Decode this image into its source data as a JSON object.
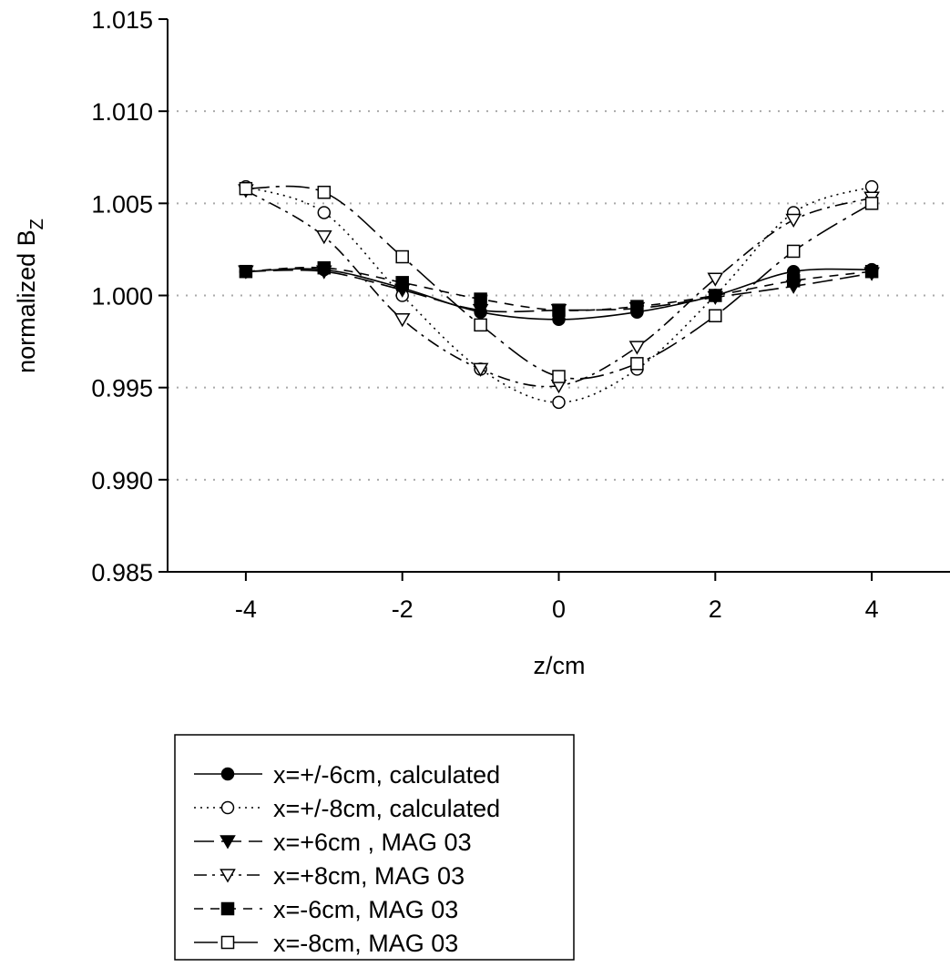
{
  "chart_data": {
    "type": "line",
    "xlabel": "z/cm",
    "ylabel_main": "normalized B",
    "ylabel_sub": "Z",
    "xlim": [
      -5,
      5
    ],
    "ylim": [
      0.985,
      1.015
    ],
    "xticks": [
      -4,
      -2,
      0,
      2,
      4
    ],
    "xtick_labels": [
      "-4",
      "-2",
      "0",
      "2",
      "4"
    ],
    "yticks": [
      0.985,
      0.99,
      0.995,
      1.0,
      1.005,
      1.01,
      1.015
    ],
    "ytick_labels": [
      "0.985",
      "0.990",
      "0.995",
      "1.000",
      "1.005",
      "1.010",
      "1.015"
    ],
    "grid": "horizontal dotted",
    "legend_position": "below plot",
    "series": [
      {
        "name": "x=+/-6cm, calculated",
        "marker": "circle-filled",
        "line": "solid",
        "x": [
          -4,
          -3,
          -2,
          -1,
          0,
          1,
          2,
          3,
          4
        ],
        "y": [
          1.0013,
          1.0014,
          1.0004,
          0.9991,
          0.9987,
          0.9991,
          1.0,
          1.0013,
          1.0014
        ]
      },
      {
        "name": "x=+/-8cm, calculated",
        "marker": "circle-open",
        "line": "dotted",
        "x": [
          -4,
          -3,
          -2,
          -1,
          0,
          1,
          2,
          3,
          4
        ],
        "y": [
          1.0059,
          1.0045,
          1.0,
          0.996,
          0.9942,
          0.996,
          1.0,
          1.0045,
          1.0059
        ]
      },
      {
        "name": "x=+6cm , MAG 03",
        "marker": "triangle-down-filled",
        "line": "long-dash",
        "x": [
          -4,
          -3,
          -2,
          -1,
          0,
          1,
          2,
          3,
          4
        ],
        "y": [
          1.0013,
          1.0013,
          1.0003,
          0.9992,
          0.9992,
          0.9993,
          0.9999,
          1.0005,
          1.0012
        ]
      },
      {
        "name": "x=+8cm, MAG 03",
        "marker": "triangle-down-open",
        "line": "dash-dot",
        "x": [
          -4,
          -3,
          -2,
          -1,
          0,
          1,
          2,
          3,
          4
        ],
        "y": [
          1.0057,
          1.0032,
          0.9987,
          0.996,
          0.9951,
          0.9972,
          1.0009,
          1.0041,
          1.0053
        ]
      },
      {
        "name": "x=-6cm, MAG 03",
        "marker": "square-filled",
        "line": "dash",
        "x": [
          -4,
          -3,
          -2,
          -1,
          0,
          1,
          2,
          3,
          4
        ],
        "y": [
          1.0013,
          1.0015,
          1.0007,
          0.9998,
          0.9992,
          0.9994,
          1.0,
          1.0008,
          1.0013
        ]
      },
      {
        "name": "x=-8cm, MAG 03",
        "marker": "square-open",
        "line": "long-dash-dot",
        "x": [
          -4,
          -3,
          -2,
          -1,
          0,
          1,
          2,
          3,
          4
        ],
        "y": [
          1.0058,
          1.0056,
          1.0021,
          0.9984,
          0.9956,
          0.9963,
          0.9989,
          1.0024,
          1.005
        ]
      }
    ]
  }
}
